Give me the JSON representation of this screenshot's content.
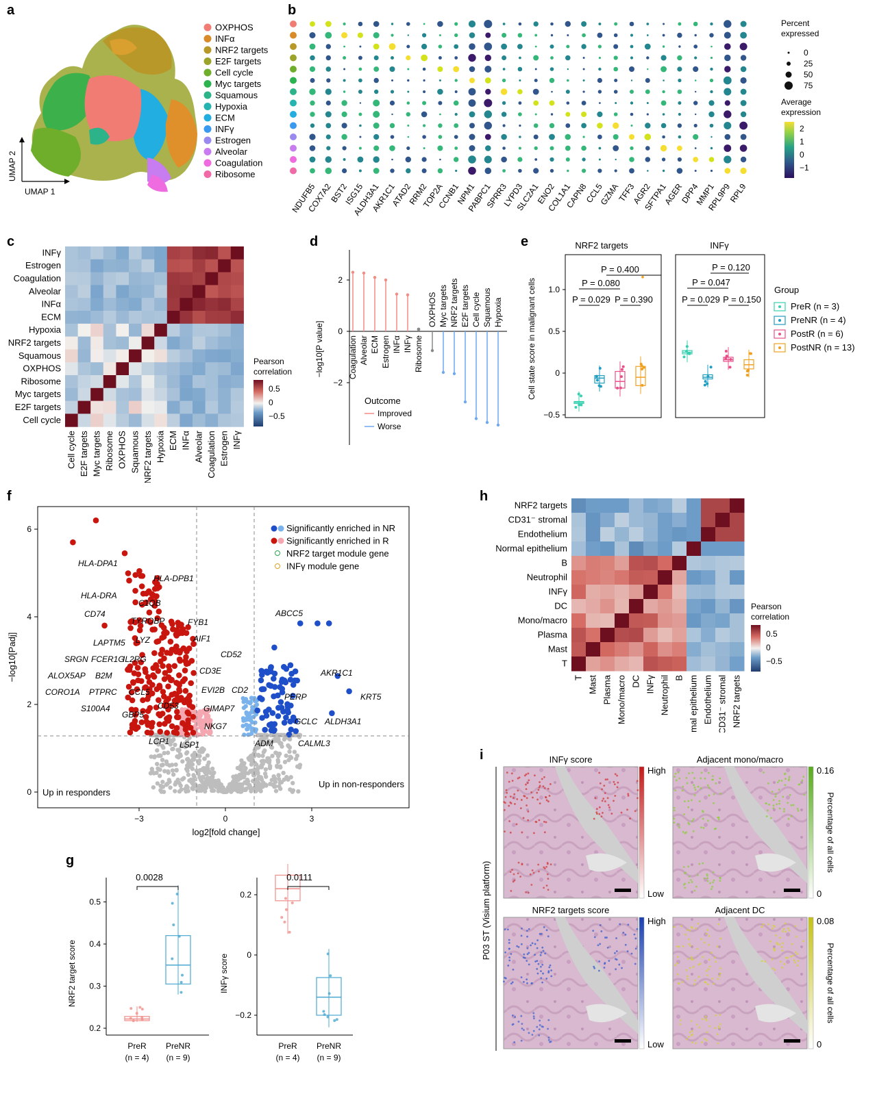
{
  "panels": {
    "a": {
      "letter": "a",
      "axis_y": "UMAP 2",
      "axis_x": "UMAP 1",
      "legend": [
        {
          "label": "OXPHOS",
          "color": "#f07c74"
        },
        {
          "label": "INFα",
          "color": "#d98b2a"
        },
        {
          "label": "NRF2 targets",
          "color": "#b9982a"
        },
        {
          "label": "E2F targets",
          "color": "#9ba32a"
        },
        {
          "label": "Cell cycle",
          "color": "#6fae2b"
        },
        {
          "label": "Myc targets",
          "color": "#2cb24f"
        },
        {
          "label": "Squamous",
          "color": "#2db38a"
        },
        {
          "label": "Hypoxia",
          "color": "#26b4b0"
        },
        {
          "label": "ECM",
          "color": "#22aee0"
        },
        {
          "label": "INFγ",
          "color": "#3a9af0"
        },
        {
          "label": "Estrogen",
          "color": "#9a8af0"
        },
        {
          "label": "Alveolar",
          "color": "#c77cf0"
        },
        {
          "label": "Coagulation",
          "color": "#ee6ce0"
        },
        {
          "label": "Ribosome",
          "color": "#f06aa8"
        }
      ]
    },
    "b": {
      "letter": "b",
      "genes": [
        "NDUFB5",
        "COX7A2",
        "BST2",
        "ISG15",
        "ALDH3A1",
        "AKR1C1",
        "ATAD2",
        "RRM2",
        "TOP2A",
        "CCNB1",
        "NPM1",
        "PABPC1",
        "SPRR3",
        "LYPD3",
        "SLC2A1",
        "ENO2",
        "COL1A1",
        "CAPN8",
        "CCL5",
        "GZMA",
        "TFF3",
        "AGR2",
        "SFTPA1",
        "AGER",
        "DPP4",
        "MMP1",
        "RPL9P9",
        "RPL9"
      ],
      "size_legend_title": [
        "Percent",
        "expressed"
      ],
      "size_legend_values": [
        "0",
        "25",
        "50",
        "75"
      ],
      "color_legend_title": [
        "Average",
        "expression"
      ],
      "color_legend_ticks": [
        "2",
        "1",
        "0",
        "−1"
      ]
    },
    "c": {
      "letter": "c",
      "rows": [
        "INFγ",
        "Estrogen",
        "Coagulation",
        "Alveolar",
        "INFα",
        "ECM",
        "Hypoxia",
        "NRF2 targets",
        "Squamous",
        "OXPHOS",
        "Ribosome",
        "Myc targets",
        "E2F targets",
        "Cell cycle"
      ],
      "cols": [
        "Cell cycle",
        "E2F targets",
        "Myc targets",
        "Ribosome",
        "OXPHOS",
        "Squamous",
        "NRF2 targets",
        "Hypoxia",
        "ECM",
        "INFα",
        "Alveolar",
        "Coagulation",
        "Estrogen",
        "INFγ"
      ],
      "legend_title": [
        "Pearson",
        "correlation"
      ],
      "legend_ticks": [
        "0.5",
        "0",
        "−0.5"
      ]
    },
    "d": {
      "letter": "d",
      "ylabel": "−log10[P value]",
      "yticks": [
        "2",
        "0",
        "−2"
      ],
      "legend_title": "Outcome",
      "legend_items": [
        {
          "label": "Improved",
          "color": "#f28b82"
        },
        {
          "label": "Worse",
          "color": "#6fa8f0"
        }
      ]
    },
    "e": {
      "letter": "e",
      "ylabel": "Cell state score in malignant cells",
      "yticks": [
        "1.0",
        "0.5",
        "0",
        "−0.5"
      ],
      "facet1_title": "NRF2 targets",
      "facet2_title": "INFγ",
      "facet1_pvals": [
        "P = 0.400",
        "P = 0.080",
        "P = 0.029",
        "P = 0.390"
      ],
      "facet2_pvals": [
        "P = 0.120",
        "P = 0.047",
        "P = 0.029",
        "P = 0.150"
      ],
      "legend_title": "Group",
      "groups": [
        {
          "label": "PreR (n = 3)",
          "color": "#38d0b0"
        },
        {
          "label": "PreNR (n = 4)",
          "color": "#1e9ec0"
        },
        {
          "label": "PostR (n = 6)",
          "color": "#e8508a"
        },
        {
          "label": "PostNR (n = 13)",
          "color": "#f0a020"
        }
      ]
    },
    "f": {
      "letter": "f",
      "xlabel": "log2[fold change]",
      "ylabel": "−log10[Padj]",
      "xticks": [
        "−3",
        "0",
        "3"
      ],
      "yticks": [
        "6",
        "4",
        "2",
        "0"
      ],
      "legend": [
        "Significantly enriched in NR",
        "Significantly enriched in R",
        "NRF2 target module gene",
        "INFγ module gene"
      ],
      "corner_left": "Up in responders",
      "corner_right": "Up in non-responders",
      "gene_labels_left": [
        "HLA-DPA1",
        "HLA-DPB1",
        "HLA-DRA",
        "CD74",
        "C1QB",
        "TYROBP",
        "FYB1",
        "LAPTM5",
        "LYZ",
        "AIF1",
        "SRGN",
        "FCER1G",
        "IL2RG",
        "CD52",
        "CD3E",
        "ALOX5AP",
        "B2M",
        "EVI2B",
        "CORO1A",
        "PTPRC",
        "CCL5",
        "CD53",
        "GIMAP7",
        "S100A4",
        "GBP5",
        "NKG7",
        "LCP1",
        "LSP1"
      ],
      "gene_labels_right": [
        "ABCC5",
        "AKR1C1",
        "KRT5",
        "CD2",
        "PERP",
        "GCLC",
        "ALDH3A1",
        "CALML3",
        "ADM"
      ]
    },
    "g": {
      "letter": "g",
      "plot1_ylabel": "NRF2 target score",
      "plot1_yticks": [
        "0.5",
        "0.4",
        "0.3",
        "0.2"
      ],
      "plot1_p": "0.0028",
      "plot2_ylabel": "INFγ score",
      "plot2_yticks": [
        "0.2",
        "0",
        "−0.2"
      ],
      "plot2_p": "0.0111",
      "x_labels": [
        "PreR",
        "PreNR"
      ],
      "n_labels": [
        "(n = 4)",
        "(n = 9)"
      ]
    },
    "h": {
      "letter": "h",
      "rows": [
        "NRF2 targets",
        "CD31⁻ stromal",
        "Endothelium",
        "Normal epithelium",
        "B",
        "Neutrophil",
        "INFγ",
        "DC",
        "Mono/macro",
        "Plasma",
        "Mast",
        "T"
      ],
      "cols": [
        "T",
        "Mast",
        "Plasma",
        "Mono/macro",
        "DC",
        "INFγ",
        "Neutrophil",
        "B",
        "Normal epithelium",
        "Endothelium",
        "CD31⁻ stromal",
        "NRF2 targets"
      ],
      "legend_title": [
        "Pearson",
        "correlation"
      ],
      "legend_ticks": [
        "0.5",
        "0",
        "−0.5"
      ]
    },
    "i": {
      "letter": "i",
      "side_label": "P03 ST (Visium platform)",
      "tile_titles": [
        "INFγ score",
        "Adjacent mono/macro",
        "NRF2 targets score",
        "Adjacent DC"
      ],
      "high": "High",
      "low": "Low",
      "pct_label": "Percentage of all cells",
      "mono_max": "0.16",
      "dc_max": "0.08",
      "zero": "0"
    }
  }
}
